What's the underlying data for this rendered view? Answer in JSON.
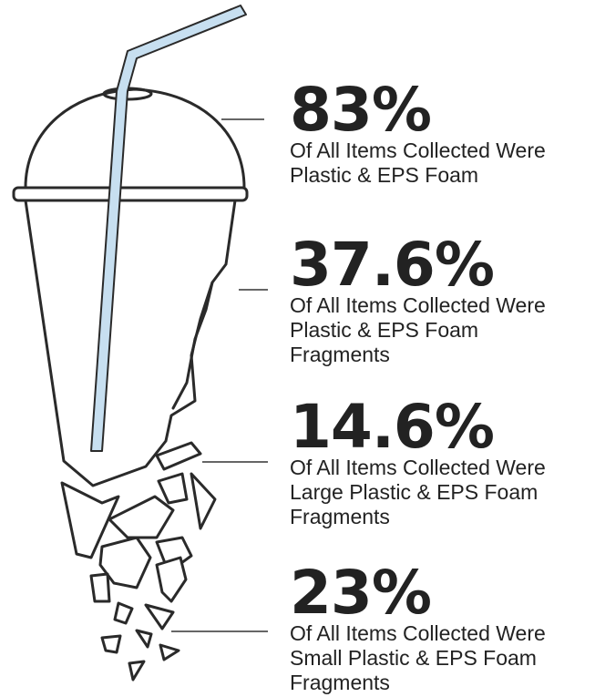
{
  "stats": [
    {
      "value": "83%",
      "lines": [
        "Of All Items Collected Were",
        "Plastic & EPS Foam"
      ]
    },
    {
      "value": "37.6%",
      "lines": [
        "Of All Items Collected Were",
        "Plastic & EPS Foam",
        "Fragments"
      ]
    },
    {
      "value": "14.6%",
      "lines": [
        "Of All Items Collected Were",
        "Large Plastic & EPS Foam",
        "Fragments"
      ]
    },
    {
      "value": "23%",
      "lines": [
        "Of All Items Collected Were",
        "Small Plastic & EPS Foam",
        "Fragments"
      ]
    }
  ],
  "colors": {
    "text": "#222222",
    "outline": "#2a2a2a",
    "straw": "#c7dff0",
    "leader": "#666666"
  },
  "illustration": "broken-plastic-cup-with-straw"
}
